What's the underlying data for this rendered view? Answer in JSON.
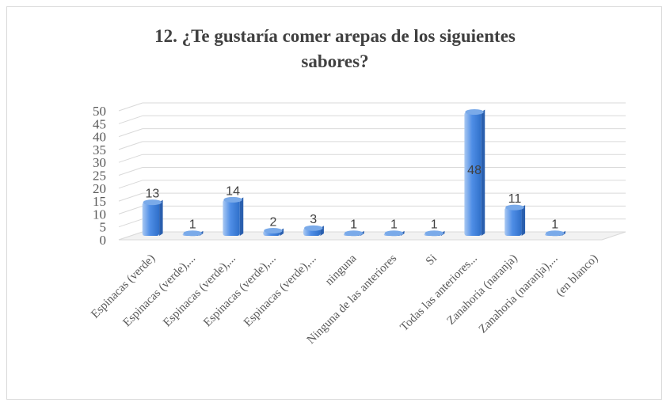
{
  "chart_data": {
    "type": "bar",
    "title_lines": [
      "12. ¿Te gustaría comer arepas de los siguientes",
      "sabores?"
    ],
    "categories": [
      "Espinacas (verde)",
      "Espinacas (verde),...",
      "Espinacas (verde),...",
      "Espinacas (verde),...",
      "Espinacas (verde),...",
      "ninguna",
      "Ninguna de las anteriores",
      "Si",
      "Todas las anteriores...",
      "Zanahoria (naranja)",
      "Zanahoria (naranja),...",
      "(en blanco)"
    ],
    "values": [
      13,
      1,
      14,
      2,
      3,
      1,
      1,
      1,
      48,
      11,
      1,
      null
    ],
    "data_labels": [
      "13",
      "1",
      "14",
      "2",
      "3",
      "1",
      "1",
      "1",
      "48",
      "11",
      "1",
      ""
    ],
    "ylim": [
      0,
      50
    ],
    "y_ticks": [
      0,
      5,
      10,
      15,
      20,
      25,
      30,
      35,
      40,
      45,
      50
    ],
    "grid": true,
    "legend": "none",
    "colors": {
      "bar_light": "#a9c8f2",
      "bar_mid": "#4f8ee6",
      "bar_dark": "#2f6fc9",
      "grid": "#d9d9d9",
      "axis_text": "#595959"
    }
  }
}
